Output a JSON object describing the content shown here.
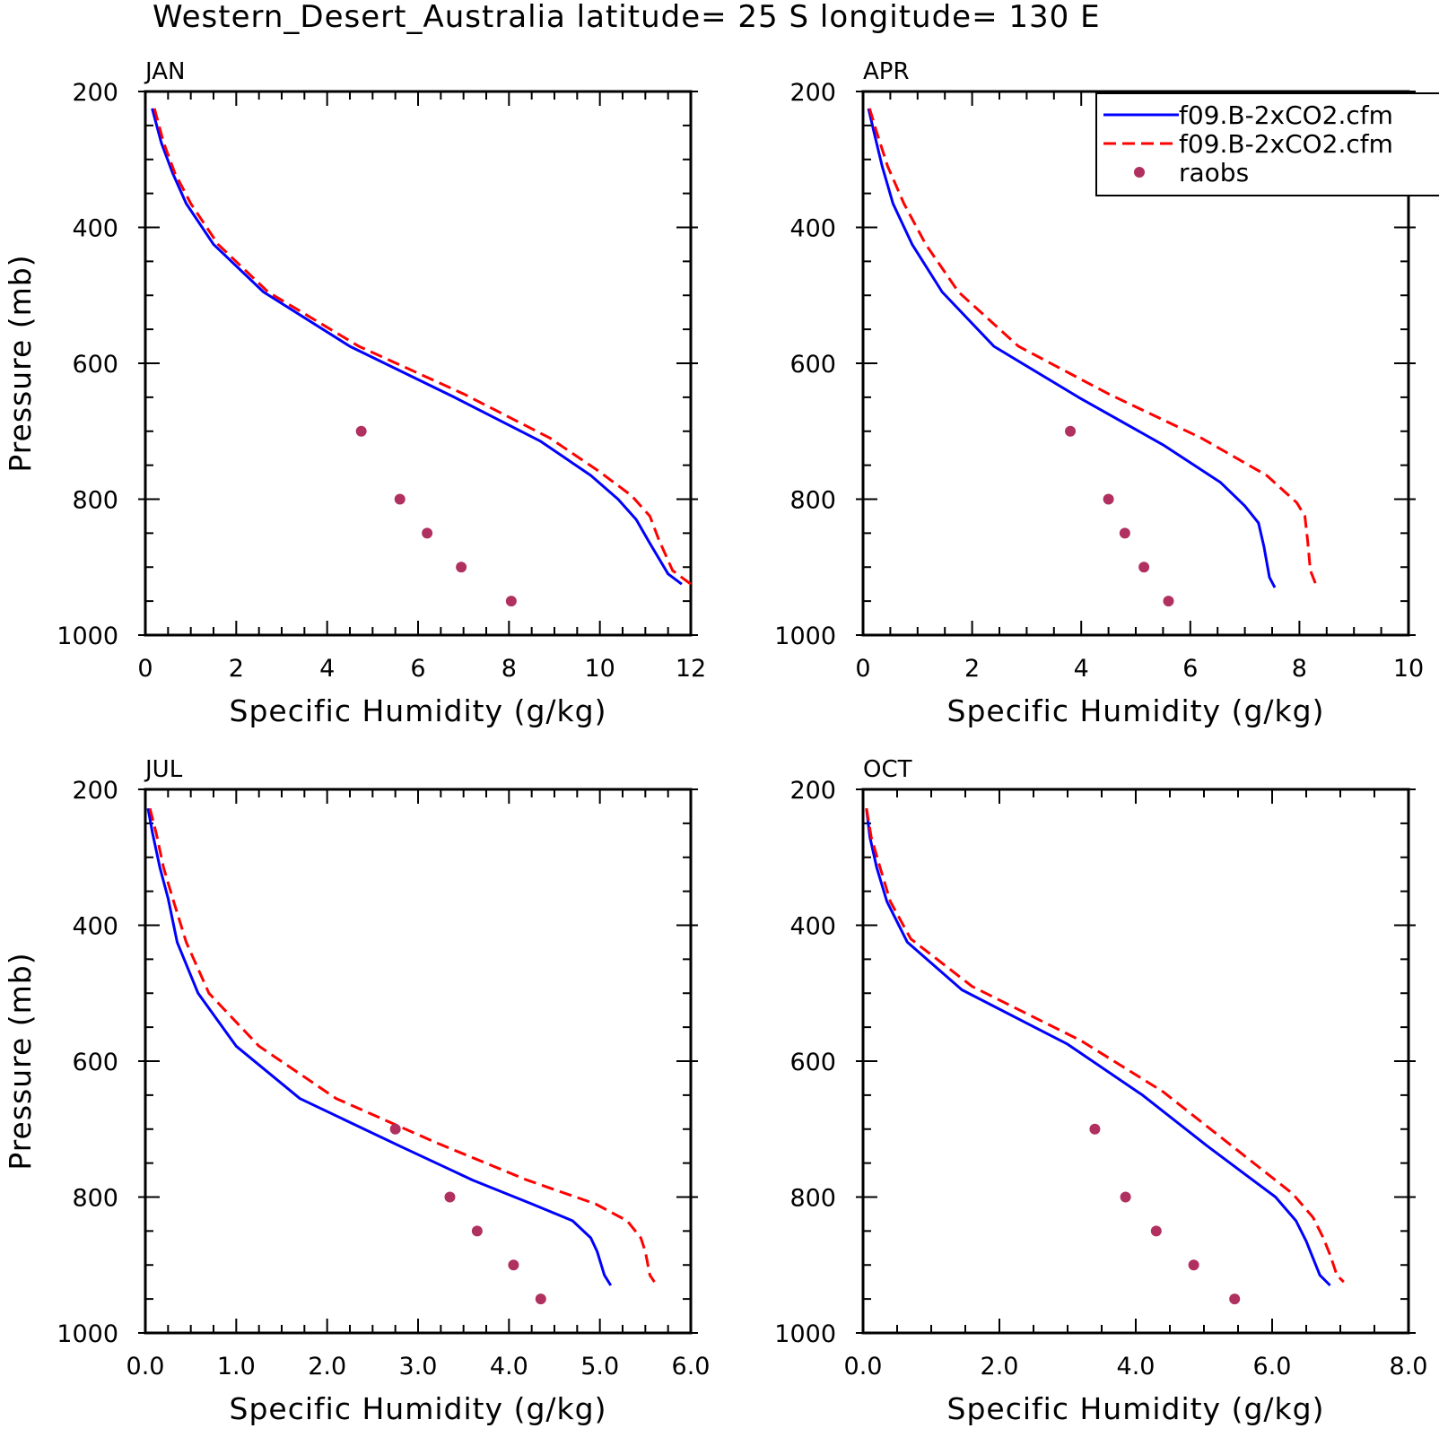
{
  "title": "Western_Desert_Australia  latitude= 25 S longitude= 130 E",
  "chart_data": [
    {
      "type": "line",
      "panel": "JAN",
      "xlabel": "Specific Humidity (g/kg)",
      "ylabel": "Pressure (mb)",
      "xlim": [
        0,
        12
      ],
      "ylim": [
        1000,
        200
      ],
      "x_ticks": [
        "0",
        "2",
        "4",
        "6",
        "8",
        "10",
        "12"
      ],
      "y_ticks": [
        "200",
        "400",
        "600",
        "800",
        "1000"
      ],
      "series": [
        {
          "name": "f09.B-2xCO2.cfm",
          "color": "#0000ff",
          "style": "solid",
          "x": [
            0.15,
            0.35,
            0.6,
            0.9,
            1.5,
            2.6,
            4.5,
            6.8,
            8.7,
            9.8,
            10.4,
            10.8,
            11.1,
            11.5,
            11.8
          ],
          "y": [
            225,
            275,
            320,
            365,
            425,
            495,
            575,
            650,
            715,
            765,
            800,
            830,
            865,
            910,
            925
          ]
        },
        {
          "name": "f09.B-2xCO2.cfm",
          "color": "#ff0000",
          "style": "dashed",
          "x": [
            0.2,
            0.4,
            0.65,
            1.0,
            1.6,
            2.7,
            4.7,
            7.0,
            8.9,
            10.0,
            10.7,
            11.1,
            11.3,
            11.6,
            12.0
          ],
          "y": [
            225,
            275,
            320,
            365,
            425,
            495,
            575,
            645,
            710,
            760,
            795,
            825,
            860,
            905,
            925
          ]
        },
        {
          "name": "raobs",
          "color": "#b03060",
          "style": "points",
          "x": [
            4.75,
            5.6,
            6.2,
            6.95,
            8.05
          ],
          "y": [
            700,
            800,
            850,
            900,
            950
          ]
        }
      ]
    },
    {
      "type": "line",
      "panel": "APR",
      "xlabel": "Specific Humidity (g/kg)",
      "ylabel": "",
      "xlim": [
        0,
        10
      ],
      "ylim": [
        1000,
        200
      ],
      "x_ticks": [
        "0",
        "2",
        "4",
        "6",
        "8",
        "10"
      ],
      "y_ticks": [
        "200",
        "400",
        "600",
        "800",
        "1000"
      ],
      "series": [
        {
          "name": "f09.B-2xCO2.cfm",
          "color": "#0000ff",
          "style": "solid",
          "x": [
            0.1,
            0.2,
            0.35,
            0.55,
            0.9,
            1.45,
            2.4,
            3.95,
            5.5,
            6.55,
            7.0,
            7.25,
            7.35,
            7.45,
            7.55
          ],
          "y": [
            225,
            260,
            310,
            365,
            425,
            495,
            575,
            650,
            720,
            775,
            810,
            835,
            870,
            915,
            930
          ]
        },
        {
          "name": "f09.B-2xCO2.cfm",
          "color": "#ff0000",
          "style": "dashed",
          "x": [
            0.12,
            0.25,
            0.45,
            0.75,
            1.15,
            1.75,
            2.85,
            4.5,
            6.2,
            7.4,
            7.95,
            8.1,
            8.15,
            8.2,
            8.3
          ],
          "y": [
            225,
            260,
            310,
            365,
            425,
            495,
            575,
            645,
            710,
            765,
            805,
            825,
            860,
            905,
            925
          ]
        },
        {
          "name": "raobs",
          "color": "#b03060",
          "style": "points",
          "x": [
            3.8,
            4.5,
            4.8,
            5.15,
            5.6
          ],
          "y": [
            700,
            800,
            850,
            900,
            950
          ]
        }
      ]
    },
    {
      "type": "line",
      "panel": "JUL",
      "xlabel": "Specific Humidity (g/kg)",
      "ylabel": "Pressure (mb)",
      "xlim": [
        0,
        6
      ],
      "ylim": [
        1000,
        200
      ],
      "x_ticks": [
        "0.0",
        "1.0",
        "2.0",
        "3.0",
        "4.0",
        "5.0",
        "6.0"
      ],
      "y_ticks": [
        "200",
        "400",
        "600",
        "800",
        "1000"
      ],
      "series": [
        {
          "name": "f09.B-2xCO2.cfm",
          "color": "#0000ff",
          "style": "solid",
          "x": [
            0.03,
            0.08,
            0.16,
            0.25,
            0.35,
            0.58,
            1.0,
            1.7,
            2.8,
            3.6,
            4.25,
            4.7,
            4.9,
            4.97,
            5.05,
            5.12
          ],
          "y": [
            228,
            265,
            315,
            360,
            425,
            500,
            578,
            655,
            725,
            775,
            810,
            835,
            860,
            880,
            915,
            930
          ]
        },
        {
          "name": "f09.B-2xCO2.cfm",
          "color": "#ff0000",
          "style": "dashed",
          "x": [
            0.05,
            0.12,
            0.2,
            0.3,
            0.45,
            0.7,
            1.25,
            2.1,
            3.2,
            4.2,
            4.95,
            5.3,
            5.45,
            5.5,
            5.55,
            5.6
          ],
          "y": [
            228,
            265,
            315,
            360,
            425,
            500,
            578,
            655,
            720,
            775,
            810,
            835,
            860,
            880,
            915,
            925
          ]
        },
        {
          "name": "raobs",
          "color": "#b03060",
          "style": "points",
          "x": [
            2.75,
            3.35,
            3.65,
            4.05,
            4.35
          ],
          "y": [
            700,
            800,
            850,
            900,
            950
          ]
        }
      ]
    },
    {
      "type": "line",
      "panel": "OCT",
      "xlabel": "Specific Humidity (g/kg)",
      "ylabel": "",
      "xlim": [
        0,
        8
      ],
      "ylim": [
        1000,
        200
      ],
      "x_ticks": [
        "0.0",
        "2.0",
        "4.0",
        "6.0",
        "8.0"
      ],
      "y_ticks": [
        "200",
        "400",
        "600",
        "800",
        "1000"
      ],
      "series": [
        {
          "name": "f09.B-2xCO2.cfm",
          "color": "#0000ff",
          "style": "solid",
          "x": [
            0.05,
            0.1,
            0.2,
            0.35,
            0.65,
            1.45,
            3.0,
            4.1,
            5.05,
            6.05,
            6.35,
            6.5,
            6.6,
            6.7,
            6.85
          ],
          "y": [
            228,
            270,
            315,
            365,
            425,
            495,
            575,
            650,
            725,
            800,
            835,
            865,
            890,
            915,
            930
          ]
        },
        {
          "name": "f09.B-2xCO2.cfm",
          "color": "#ff0000",
          "style": "dashed",
          "x": [
            0.05,
            0.12,
            0.25,
            0.4,
            0.7,
            1.6,
            3.2,
            4.4,
            5.35,
            6.3,
            6.6,
            6.75,
            6.85,
            6.95,
            7.05
          ],
          "y": [
            228,
            270,
            315,
            365,
            420,
            490,
            570,
            645,
            720,
            795,
            830,
            860,
            885,
            915,
            925
          ]
        },
        {
          "name": "raobs",
          "color": "#b03060",
          "style": "points",
          "x": [
            3.4,
            3.85,
            4.3,
            4.85,
            5.45
          ],
          "y": [
            700,
            800,
            850,
            900,
            950
          ]
        }
      ]
    }
  ],
  "legend": {
    "placement": "top-right",
    "entries": [
      {
        "label": "f09.B-2xCO2.cfm",
        "color": "#0000ff",
        "style": "solid"
      },
      {
        "label": "f09.B-2xCO2.cfm",
        "color": "#ff0000",
        "style": "dashed"
      },
      {
        "label": "raobs",
        "color": "#b03060",
        "style": "points"
      }
    ]
  }
}
